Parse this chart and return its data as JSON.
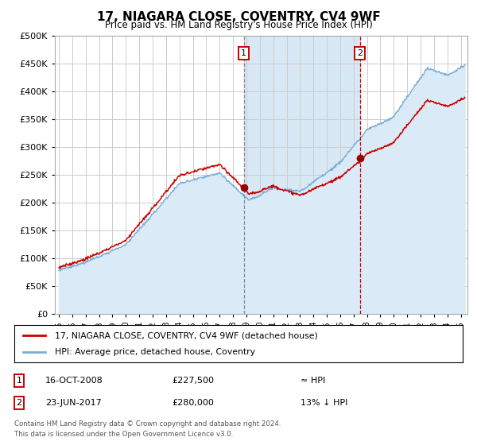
{
  "title": "17, NIAGARA CLOSE, COVENTRY, CV4 9WF",
  "subtitle": "Price paid vs. HM Land Registry's House Price Index (HPI)",
  "legend_line1": "17, NIAGARA CLOSE, COVENTRY, CV4 9WF (detached house)",
  "legend_line2": "HPI: Average price, detached house, Coventry",
  "annotation1_date": "16-OCT-2008",
  "annotation1_price": "£227,500",
  "annotation1_hpi": "≈ HPI",
  "annotation2_date": "23-JUN-2017",
  "annotation2_price": "£280,000",
  "annotation2_hpi": "13% ↓ HPI",
  "footer": "Contains HM Land Registry data © Crown copyright and database right 2024.\nThis data is licensed under the Open Government Licence v3.0.",
  "sale1_year": 2008.8,
  "sale1_price": 227500,
  "sale2_year": 2017.47,
  "sale2_price": 280000,
  "hpi_fill_color": "#daeaf7",
  "hpi_line_color": "#7aadd4",
  "sale_color": "#cc0000",
  "sale_dot_color": "#990000",
  "annotation_box_color": "#cc0000",
  "shaded_region_color": "#d8e8f5",
  "ylim": [
    0,
    500000
  ],
  "xlim_start": 1994.7,
  "xlim_end": 2025.5,
  "yticks": [
    0,
    50000,
    100000,
    150000,
    200000,
    250000,
    300000,
    350000,
    400000,
    450000,
    500000
  ]
}
